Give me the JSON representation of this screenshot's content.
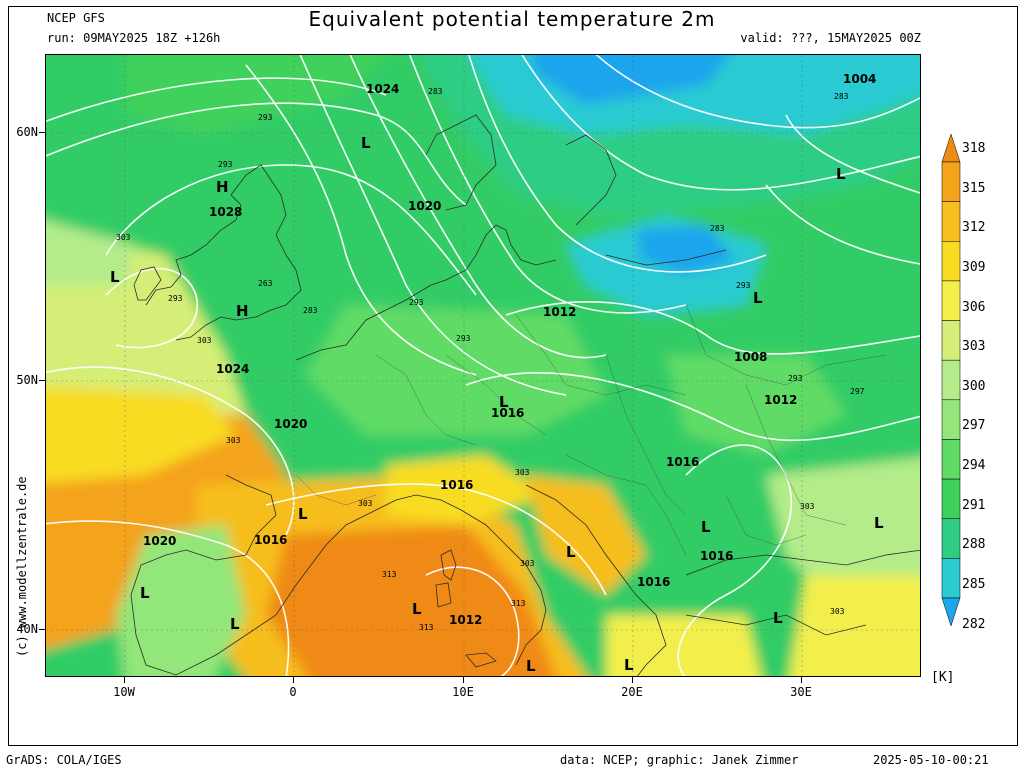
{
  "header": {
    "model": "NCEP GFS",
    "run": "run: 09MAY2025 18Z +126h",
    "title": "Equivalent potential temperature 2m",
    "valid": "valid: ???, 15MAY2025 00Z"
  },
  "map": {
    "lat_labels": [
      "60N",
      "50N",
      "40N"
    ],
    "lon_labels": [
      "10W",
      "0",
      "10E",
      "20E",
      "30E"
    ],
    "watermark": "(c) www.modellzentrale.de",
    "pressure_labels": [
      "1024",
      "1004",
      "1020",
      "1028",
      "1012",
      "1024",
      "1008",
      "1016",
      "1012",
      "1020",
      "1016",
      "1016",
      "1020",
      "1016",
      "1016",
      "1012",
      "1016"
    ],
    "pressure_centers": [
      "H",
      "H",
      "L",
      "L",
      "L",
      "L",
      "L",
      "L",
      "L",
      "L",
      "L",
      "L",
      "L",
      "L",
      "L",
      "L",
      "L"
    ],
    "theta_labels": [
      "293",
      "283",
      "293",
      "263",
      "283",
      "293",
      "293",
      "303",
      "293",
      "303",
      "303",
      "313",
      "313",
      "313",
      "303",
      "303",
      "297",
      "283",
      "283",
      "293",
      "293",
      "303",
      "303",
      "303"
    ]
  },
  "legend": {
    "unit": "[K]",
    "levels": [
      "318",
      "315",
      "312",
      "309",
      "306",
      "303",
      "300",
      "297",
      "294",
      "291",
      "288",
      "285",
      "282"
    ],
    "colors": [
      "#f08a16",
      "#f4a31c",
      "#f6be1e",
      "#f8dc21",
      "#f2ef4d",
      "#d5ee77",
      "#b4ec8a",
      "#93e679",
      "#60db66",
      "#40d05c",
      "#2fcd84",
      "#2bcbd2",
      "#1fa5ec"
    ]
  },
  "footer": {
    "left": "GrADS: COLA/IGES",
    "credit": "data: NCEP; graphic: Janek Zimmer",
    "timestamp": "2025-05-10-00:21"
  }
}
